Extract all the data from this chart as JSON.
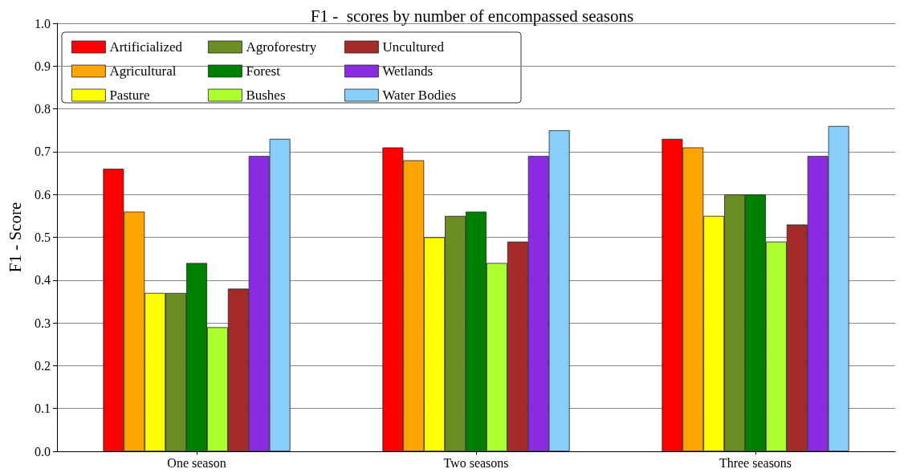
{
  "chart_data": {
    "type": "bar",
    "title": "F1 -  scores by number of encompassed seasons",
    "ylabel": "F1 - Score",
    "categories": [
      "One season",
      "Two seasons",
      "Three seasons"
    ],
    "series": [
      {
        "name": "Artificialized",
        "color": "#ff0000",
        "values": [
          0.66,
          0.71,
          0.73
        ]
      },
      {
        "name": "Agricultural",
        "color": "#ffa500",
        "values": [
          0.56,
          0.68,
          0.71
        ]
      },
      {
        "name": "Pasture",
        "color": "#ffff00",
        "values": [
          0.37,
          0.5,
          0.55
        ]
      },
      {
        "name": "Agroforestry",
        "color": "#6b8e23",
        "values": [
          0.37,
          0.55,
          0.6
        ]
      },
      {
        "name": "Forest",
        "color": "#008000",
        "values": [
          0.44,
          0.56,
          0.6
        ]
      },
      {
        "name": "Bushes",
        "color": "#adff2f",
        "values": [
          0.29,
          0.44,
          0.49
        ]
      },
      {
        "name": "Uncultured",
        "color": "#a52a2a",
        "values": [
          0.38,
          0.49,
          0.53
        ]
      },
      {
        "name": "Wetlands",
        "color": "#8a2be2",
        "values": [
          0.69,
          0.69,
          0.69
        ]
      },
      {
        "name": "Water Bodies",
        "color": "#87cefa",
        "values": [
          0.73,
          0.75,
          0.76
        ]
      }
    ],
    "ylim": [
      0,
      1
    ],
    "yticks": [
      {
        "value": 0,
        "label": "0.0"
      },
      0.1,
      0.2,
      0.3,
      0.4,
      0.5,
      0.6,
      0.7,
      0.8,
      0.9,
      {
        "value": 1,
        "label": "1.0"
      }
    ],
    "grid": "y",
    "legend": "top left"
  }
}
